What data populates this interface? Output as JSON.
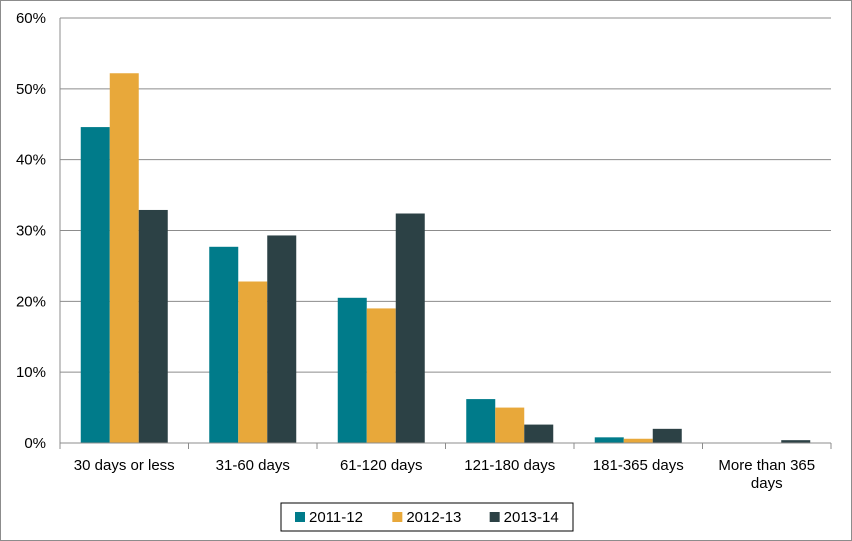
{
  "chart_data": {
    "type": "bar",
    "categories": [
      "30 days or less",
      "31-60 days",
      "61-120 days",
      "121-180 days",
      "181-365 days",
      "More than 365 days"
    ],
    "series": [
      {
        "name": "2011-12",
        "color": "#007b8a",
        "values": [
          44.6,
          27.7,
          20.5,
          6.2,
          0.8,
          0.0
        ]
      },
      {
        "name": "2012-13",
        "color": "#e8a83a",
        "values": [
          52.2,
          22.8,
          19.0,
          5.0,
          0.6,
          0.0
        ]
      },
      {
        "name": "2013-14",
        "color": "#2c4145",
        "values": [
          32.9,
          29.3,
          32.4,
          2.6,
          2.0,
          0.4
        ]
      }
    ],
    "ylim": [
      0,
      60
    ],
    "yticks": [
      "0%",
      "10%",
      "20%",
      "30%",
      "40%",
      "50%",
      "60%"
    ],
    "grid": true,
    "legend_position": "bottom",
    "title": "",
    "xlabel": "",
    "ylabel": ""
  }
}
